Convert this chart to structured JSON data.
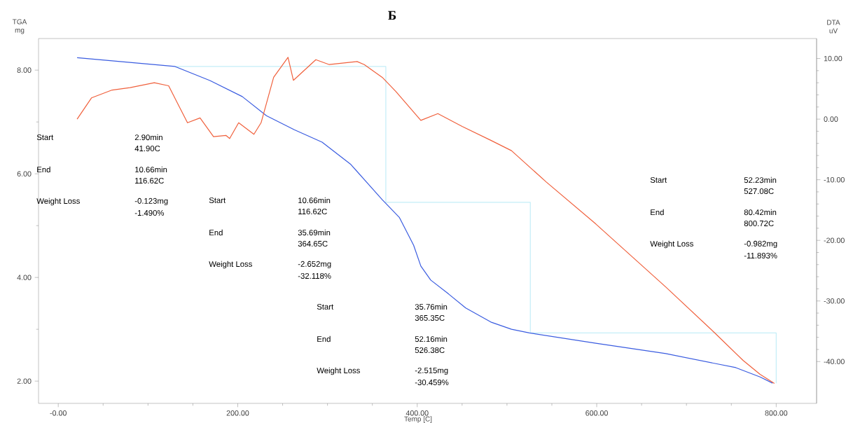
{
  "chart_data": {
    "type": "line",
    "title": "Б",
    "xlabel": "Temp [C]",
    "ylabel": "TGA mg",
    "y2label": "DTA uV",
    "xlim": [
      -22,
      845
    ],
    "ylim": [
      1.57,
      8.61
    ],
    "y2lim": [
      -46.9,
      13.3
    ],
    "xticks": [
      {
        "value": 0,
        "label": "-0.00"
      },
      {
        "value": 200,
        "label": "200.00"
      },
      {
        "value": 400,
        "label": "400.00"
      },
      {
        "value": 600,
        "label": "600.00"
      },
      {
        "value": 800,
        "label": "800.00"
      }
    ],
    "yticks": [
      {
        "value": 2,
        "label": "2.00"
      },
      {
        "value": 4,
        "label": "4.00"
      },
      {
        "value": 6,
        "label": "6.00"
      },
      {
        "value": 8,
        "label": "8.00"
      }
    ],
    "y2ticks": [
      {
        "value": -40,
        "label": "-40.00"
      },
      {
        "value": -30,
        "label": "-30.00"
      },
      {
        "value": -20,
        "label": "-20.00"
      },
      {
        "value": -10,
        "label": "-10.00"
      },
      {
        "value": 0,
        "label": "0.00"
      },
      {
        "value": 10,
        "label": "10.00"
      }
    ],
    "grid": false,
    "series": [
      {
        "type": "line",
        "color": "#c4eef8",
        "x": [
          130,
          365,
          365,
          526,
          526,
          800,
          800
        ],
        "values": [
          8.07,
          8.07,
          5.45,
          5.45,
          2.93,
          2.93,
          1.96
        ]
      },
      {
        "color": "#3a5ce0",
        "x": [
          21,
          130,
          169,
          205,
          232,
          263,
          294,
          326,
          361,
          380,
          396,
          404,
          415,
          435,
          454,
          482,
          505,
          525,
          599,
          677,
          755,
          782,
          796
        ],
        "values": [
          8.24,
          8.07,
          7.8,
          7.49,
          7.12,
          6.85,
          6.61,
          6.18,
          5.5,
          5.16,
          4.62,
          4.22,
          3.95,
          3.68,
          3.41,
          3.14,
          3.0,
          2.93,
          2.73,
          2.53,
          2.26,
          2.08,
          1.96
        ]
      },
      {
        "axis": "y2",
        "color": "#f0603c",
        "x": [
          21,
          37,
          60,
          80,
          107,
          123,
          134,
          144,
          158,
          173,
          187,
          191,
          201,
          218,
          226,
          240,
          256,
          262,
          287,
          302,
          333,
          341,
          361,
          376,
          404,
          423,
          450,
          482,
          505,
          544,
          599,
          677,
          731,
          763,
          782,
          798
        ],
        "values": [
          0.0,
          3.5,
          4.8,
          5.2,
          6.0,
          5.5,
          2.3,
          -0.6,
          0.2,
          -2.9,
          -2.7,
          -3.2,
          -0.6,
          -2.5,
          -0.6,
          6.9,
          10.2,
          6.4,
          9.8,
          9.0,
          9.5,
          9.0,
          6.9,
          4.6,
          -0.2,
          0.9,
          -1.2,
          -3.5,
          -5.2,
          -10.4,
          -17.3,
          -27.7,
          -35.2,
          -39.8,
          -42.1,
          -43.6
        ]
      }
    ],
    "annotations": [
      "Start",
      "2.90min",
      "41.90C",
      "End",
      "10.66min",
      "116.62C",
      "Weight Loss",
      "-0.123mg",
      "-1.490%",
      "Start",
      "10.66min",
      "116.62C",
      "End",
      "35.69min",
      "364.65C",
      "Weight Loss",
      "-2.652mg",
      "-32.118%",
      "Start",
      "35.76min",
      "365.35C",
      "End",
      "52.16min",
      "526.38C",
      "Weight Loss",
      "-2.515mg",
      "-30.459%",
      "Start",
      "52.23min",
      "527.08C",
      "End",
      "80.42min",
      "800.72C",
      "Weight Loss",
      "-0.982mg",
      "-11.893%"
    ]
  }
}
